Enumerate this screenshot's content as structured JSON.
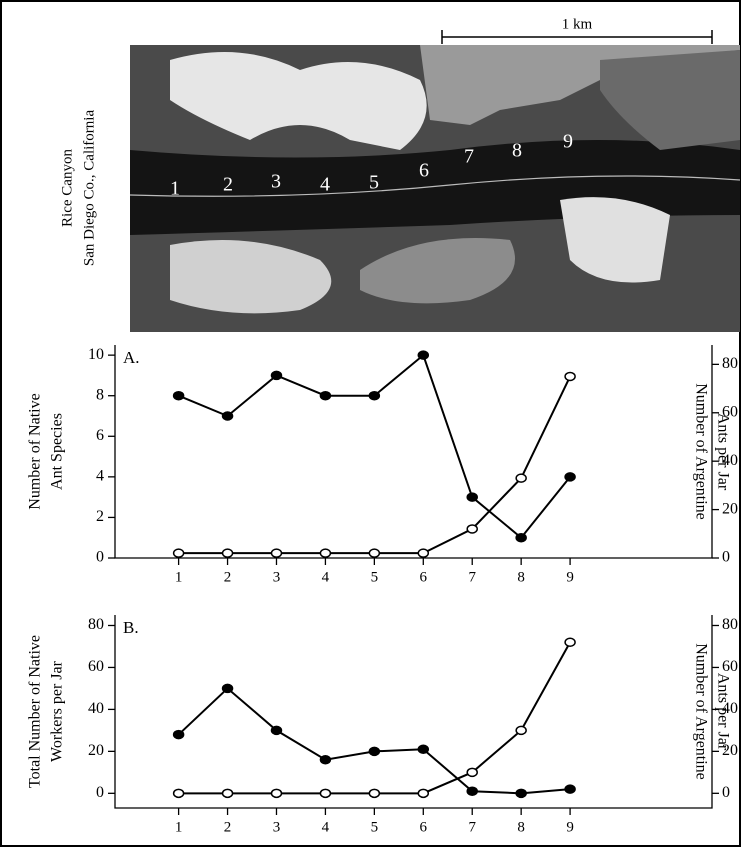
{
  "photo": {
    "caption": [
      "Rice Canyon",
      "San Diego Co., California"
    ],
    "scale_label": "1 km",
    "site_labels": [
      "1",
      "2",
      "3",
      "4",
      "5",
      "6",
      "7",
      "8",
      "9"
    ]
  },
  "chart_data": [
    {
      "type": "line",
      "panel_label": "A.",
      "ylabel": [
        "Number of Native",
        "Ant Species"
      ],
      "y2label": [
        "Number of Argentine",
        "Ants per Jar"
      ],
      "xlim": [
        -0.3,
        11.9
      ],
      "xticks": [
        1,
        2,
        3,
        4,
        5,
        6,
        7,
        8,
        9
      ],
      "x": [
        1,
        2,
        3,
        4,
        5,
        6,
        7,
        8,
        9
      ],
      "ylim": [
        0,
        10.5
      ],
      "yticks": [
        0,
        2,
        4,
        6,
        8,
        10
      ],
      "y2lim": [
        0,
        88
      ],
      "y2ticks": [
        0,
        20,
        40,
        60,
        80
      ],
      "series": [
        {
          "color": "#000000",
          "marker_fill": "#000000",
          "values": [
            8,
            7,
            9,
            8,
            8,
            10,
            3,
            1,
            4
          ]
        },
        {
          "color": "#000000",
          "marker_fill": "#ffffff",
          "axis": "y2",
          "values": [
            2,
            2,
            2,
            2,
            2,
            2,
            12,
            33,
            75
          ]
        }
      ]
    },
    {
      "type": "line",
      "panel_label": "B.",
      "ylabel": [
        "Total Number of Native",
        "Workers per Jar"
      ],
      "y2label": [
        "Number of Argentine",
        "Ants per Jar"
      ],
      "xlim": [
        -0.3,
        11.9
      ],
      "xticks": [
        1,
        2,
        3,
        4,
        5,
        6,
        7,
        8,
        9
      ],
      "x": [
        1,
        2,
        3,
        4,
        5,
        6,
        7,
        8,
        9
      ],
      "ylim": [
        -7,
        85
      ],
      "yticks": [
        0,
        20,
        40,
        60,
        80
      ],
      "y2lim": [
        -7,
        85
      ],
      "y2ticks": [
        0,
        20,
        40,
        60,
        80
      ],
      "series": [
        {
          "color": "#000000",
          "marker_fill": "#000000",
          "values": [
            28,
            50,
            30,
            16,
            20,
            21,
            1,
            0,
            2
          ]
        },
        {
          "color": "#000000",
          "marker_fill": "#ffffff",
          "axis": "y2",
          "values": [
            0,
            0,
            0,
            0,
            0,
            0,
            10,
            30,
            72
          ]
        }
      ]
    }
  ]
}
